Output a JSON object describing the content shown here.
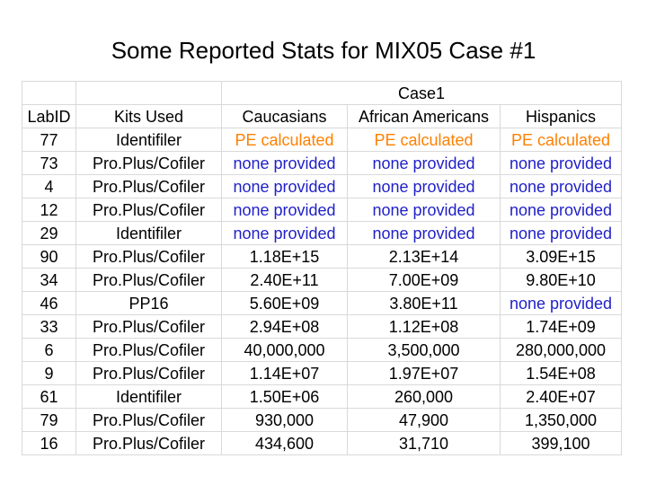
{
  "title": "Some Reported Stats for MIX05 Case #1",
  "group_header": "Case1",
  "colors": {
    "pe_calculated": "#ff8000",
    "none_provided": "#1f1fc8",
    "text": "#000000"
  },
  "columns": {
    "lab": "LabID",
    "kits": "Kits Used",
    "caucasians": "Caucasians",
    "african": "African Americans",
    "hispanics": "Hispanics"
  },
  "rows": [
    [
      "77",
      "Identifiler",
      "PE calculated",
      "PE calculated",
      "PE calculated"
    ],
    [
      "73",
      "Pro.Plus/Cofiler",
      "none provided",
      "none provided",
      "none provided"
    ],
    [
      "4",
      "Pro.Plus/Cofiler",
      "none provided",
      "none provided",
      "none provided"
    ],
    [
      "12",
      "Pro.Plus/Cofiler",
      "none provided",
      "none provided",
      "none provided"
    ],
    [
      "29",
      "Identifiler",
      "none provided",
      "none provided",
      "none provided"
    ],
    [
      "90",
      "Pro.Plus/Cofiler",
      "1.18E+15",
      "2.13E+14",
      "3.09E+15"
    ],
    [
      "34",
      "Pro.Plus/Cofiler",
      "2.40E+11",
      "7.00E+09",
      "9.80E+10"
    ],
    [
      "46",
      "PP16",
      "5.60E+09",
      "3.80E+11",
      "none provided"
    ],
    [
      "33",
      "Pro.Plus/Cofiler",
      "2.94E+08",
      "1.12E+08",
      "1.74E+09"
    ],
    [
      "6",
      "Pro.Plus/Cofiler",
      "40,000,000",
      "3,500,000",
      "280,000,000"
    ],
    [
      "9",
      "Pro.Plus/Cofiler",
      "1.14E+07",
      "1.97E+07",
      "1.54E+08"
    ],
    [
      "61",
      "Identifiler",
      "1.50E+06",
      "260,000",
      "2.40E+07"
    ],
    [
      "79",
      "Pro.Plus/Cofiler",
      "930,000",
      "47,900",
      "1,350,000"
    ],
    [
      "16",
      "Pro.Plus/Cofiler",
      "434,600",
      "31,710",
      "399,100"
    ]
  ]
}
